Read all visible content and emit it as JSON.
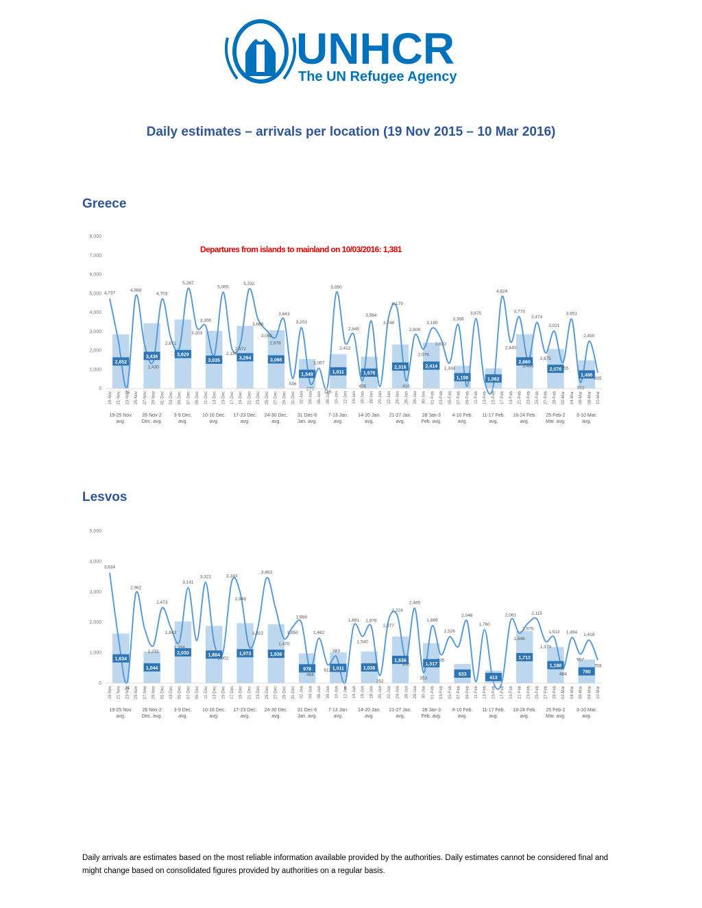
{
  "header": {
    "logo_name": "UNHCR",
    "logo_tagline": "The UN Refugee Agency"
  },
  "title": "Daily estimates – arrivals per location (19 Nov 2015 – 10 Mar 2016)",
  "footnote": "Daily arrivals are estimates based on the most reliable information available provided by the authorities. Daily estimates cannot be considered final and might change based on consolidated figures provided by authorities on a regular basis.",
  "chart_data": [
    {
      "type": "bar-line",
      "title": "Greece",
      "annotation": "Departures from islands to mainland on 10/03/2016: 1,381",
      "categories": [
        "19-25 Nov. avg.",
        "26 Nov-2 Dec. avg.",
        "3-9 Dec. avg.",
        "10-16 Dec. avg.",
        "17-23 Dec. avg.",
        "24-30 Dec. avg.",
        "31 Dec-6 Jan. avg.",
        "7-13 Jan. avg.",
        "14-20 Jan. avg.",
        "21-27 Jan. avg.",
        "28 Jan-3 Feb. avg.",
        "4-10 Feb. avg.",
        "11-17 Feb. avg.",
        "18-24 Feb. avg.",
        "25 Feb-2 Mar. avg.",
        "3-10 Mar. avg."
      ],
      "values": [
        2852,
        3436,
        3629,
        3035,
        3294,
        3066,
        1549,
        1811,
        1676,
        2316,
        2414,
        1198,
        1062,
        2860,
        2078,
        1486
      ],
      "value_labels": [
        "2,852",
        "3,436",
        "3,629",
        "3,035",
        "3,294",
        "3,066",
        "1,549",
        "1,811",
        "1,676",
        "2,316",
        "2,414",
        "1,198",
        "1,062",
        "2,860",
        "2,078",
        "1,486"
      ],
      "color": "#bdd7ee",
      "label_color": "#2e75b6",
      "line": {
        "color": "#5b9bd5",
        "x": [
          "19-Nov",
          "21-Nov",
          "23-Nov",
          "25-Nov",
          "27-Nov",
          "29-Nov",
          "01-Dec",
          "03-Dec",
          "05-Dec",
          "07-Dec",
          "09-Dec",
          "11-Dec",
          "13-Dec",
          "15-Dec",
          "17-Dec",
          "19-Dec",
          "21-Dec",
          "23-Dec",
          "25-Dec",
          "27-Dec",
          "29-Dec",
          "31-Dec",
          "02-Jan",
          "04-Jan",
          "06-Jan",
          "08-Jan",
          "10-Jan",
          "12-Jan",
          "14-Jan",
          "16-Jan",
          "18-Jan",
          "20-Jan",
          "22-Jan",
          "24-Jan",
          "26-Jan",
          "28-Jan",
          "30-Jan",
          "01-Feb",
          "03-Feb",
          "05-Feb",
          "07-Feb",
          "09-Feb",
          "11-Feb",
          "13-Feb",
          "15-Feb",
          "17-Feb",
          "19-Feb",
          "21-Feb",
          "23-Feb",
          "25-Feb",
          "27-Feb",
          "29-Feb",
          "02-Mar",
          "04-Mar",
          "06-Mar",
          "08-Mar",
          "10-Mar"
        ],
        "values": [
          4737,
          2500,
          75,
          4888,
          2300,
          1430,
          4703,
          2671,
          2130,
          5267,
          3203,
          3306,
          1738,
          5065,
          2135,
          2372,
          5232,
          3668,
          3058,
          2678,
          3643,
          536,
          3203,
          275,
          1067,
          118,
          5050,
          2412,
          2845,
          406,
          3564,
          100,
          3748,
          4179,
          416,
          2808,
          2076,
          3180,
          2622,
          1344,
          3366,
          100,
          3675,
          400,
          100,
          4824,
          2440,
          3773,
          1485,
          3474,
          1875,
          3021,
          1355,
          3651,
          332,
          2490,
          835
        ],
        "value_labels": [
          "4,737",
          null,
          "75",
          "4,888",
          null,
          "1,430",
          "4,703",
          "2,671",
          "2,130",
          "5,267",
          "3,203",
          "3,306",
          "1,738",
          "5,065",
          "2,135",
          "2,372",
          "5,232",
          "3,668",
          "3,058",
          "2,678",
          "3,643",
          "536",
          "3,203",
          "275",
          "1,067",
          "118",
          "5,050",
          "2,412",
          "2,845",
          "406",
          "3,564",
          null,
          "3,748",
          "4,179",
          "416",
          "2,808",
          "2,076",
          "3,180",
          "2,622",
          "1,344",
          "3,366",
          null,
          "3,675",
          null,
          null,
          "4,824",
          "2,440",
          "3,773",
          "1,485",
          "3,474",
          "1,875",
          "3,021",
          "1,355",
          "3,651",
          "332",
          "2,490",
          "835"
        ]
      },
      "ylim": [
        0,
        8000
      ],
      "yticks": [
        0,
        {
          "value": 1000,
          "label": "1,000"
        },
        {
          "value": 2000,
          "label": "2,000"
        },
        {
          "value": 3000,
          "label": "3,000"
        },
        {
          "value": 4000,
          "label": "4,000"
        },
        {
          "value": 5000,
          "label": "5,000"
        },
        {
          "value": 6000,
          "label": "6,000"
        },
        {
          "value": 7000,
          "label": "7,000"
        },
        {
          "value": 8000,
          "label": "8,000"
        }
      ]
    },
    {
      "type": "bar-line",
      "title": "Lesvos",
      "categories": [
        "19-25 Nov. avg.",
        "26 Nov-2 Dec. avg.",
        "3-9 Dec. avg.",
        "10-16 Dec. avg.",
        "17-23 Dec. avg.",
        "24-30 Dec. avg.",
        "31 Dec-6 Jan. avg.",
        "7-13 Jan. avg.",
        "14-20 Jan. avg.",
        "21-27 Jan. avg.",
        "28 Jan-3 Feb. avg.",
        "4-10 Feb. avg.",
        "11-17 Feb. avg.",
        "18-24 Feb. avg.",
        "25 Feb-2 Mar. avg.",
        "3-10 Mar. avg."
      ],
      "values": [
        1634,
        1044,
        2030,
        1884,
        1973,
        1936,
        978,
        1011,
        1038,
        1536,
        1317,
        633,
        413,
        1713,
        1188,
        780
      ],
      "value_labels": [
        "1,634",
        "1,044",
        "2,030",
        "1,884",
        "1,973",
        "1,936",
        "978",
        "1,011",
        "1,038",
        "1,536",
        "1,317",
        "633",
        "413",
        "1,713",
        "1,188",
        "780"
      ],
      "color": "#bdd7ee",
      "label_color": "#2e75b6",
      "line": {
        "color": "#5b9bd5",
        "x": [
          "19-Nov",
          "21-Nov",
          "23-Nov",
          "25-Nov",
          "27-Nov",
          "29-Nov",
          "01-Dec",
          "03-Dec",
          "05-Dec",
          "07-Dec",
          "09-Dec",
          "11-Dec",
          "13-Dec",
          "15-Dec",
          "17-Dec",
          "19-Dec",
          "21-Dec",
          "23-Dec",
          "25-Dec",
          "27-Dec",
          "29-Dec",
          "31-Dec",
          "02-Jan",
          "04-Jan",
          "06-Jan",
          "08-Jan",
          "10-Jan",
          "12-Jan",
          "14-Jan",
          "16-Jan",
          "18-Jan",
          "20-Jan",
          "22-Jan",
          "24-Jan",
          "26-Jan",
          "28-Jan",
          "30-Jan",
          "01-Feb",
          "03-Feb",
          "05-Feb",
          "07-Feb",
          "09-Feb",
          "11-Feb",
          "13-Feb",
          "15-Feb",
          "17-Feb",
          "19-Feb",
          "21-Feb",
          "23-Feb",
          "25-Feb",
          "27-Feb",
          "29-Feb",
          "02-Mar",
          "04-Mar",
          "06-Mar",
          "08-Mar",
          "10-Mar"
        ],
        "values": [
          3634,
          1500,
          24,
          2962,
          1800,
          1232,
          2473,
          1843,
          1356,
          3141,
          1400,
          3321,
          1300,
          1002,
          3343,
          2948,
          1200,
          1822,
          3463,
          2500,
          1470,
          1850,
          1988,
          464,
          1482,
          612,
          883,
          9,
          1891,
          1540,
          1878,
          252,
          2077,
          2224,
          800,
          2465,
          353,
          1889,
          935,
          1526,
          1200,
          2046,
          50,
          1760,
          50,
          30,
          2061,
          1646,
          1975,
          2115,
          1379,
          1513,
          484,
          1494,
          957,
          1418,
          759
        ],
        "value_labels": [
          "3,634",
          null,
          "24",
          "2,962",
          null,
          "1,232",
          "2,473",
          "1,843",
          "1,356",
          "3,141",
          null,
          "3,321",
          null,
          "1,002",
          "3,343",
          "2,948",
          null,
          "1,822",
          "3,463",
          null,
          "1,470",
          "1,850",
          "1,988",
          "464",
          "1,482",
          "612",
          "883",
          "9",
          "1,891",
          "1,540",
          "1,878",
          "252",
          "2,077",
          "2,224",
          "800",
          "2,465",
          "353",
          "1,889",
          "935",
          "1,526",
          null,
          "2,046",
          null,
          "1,760",
          null,
          null,
          "2,061",
          "1,646",
          "1,975",
          "2,115",
          "1,379",
          "1,513",
          "484",
          "1,494",
          "957",
          "1,418",
          "759"
        ]
      },
      "ylim": [
        0,
        5000
      ],
      "yticks": [
        0,
        {
          "value": 1000,
          "label": "1,000"
        },
        {
          "value": 2000,
          "label": "2,000"
        },
        {
          "value": 3000,
          "label": "3,000"
        },
        {
          "value": 4000,
          "label": "4,000"
        },
        {
          "value": 5000,
          "label": "5,000"
        }
      ]
    }
  ]
}
